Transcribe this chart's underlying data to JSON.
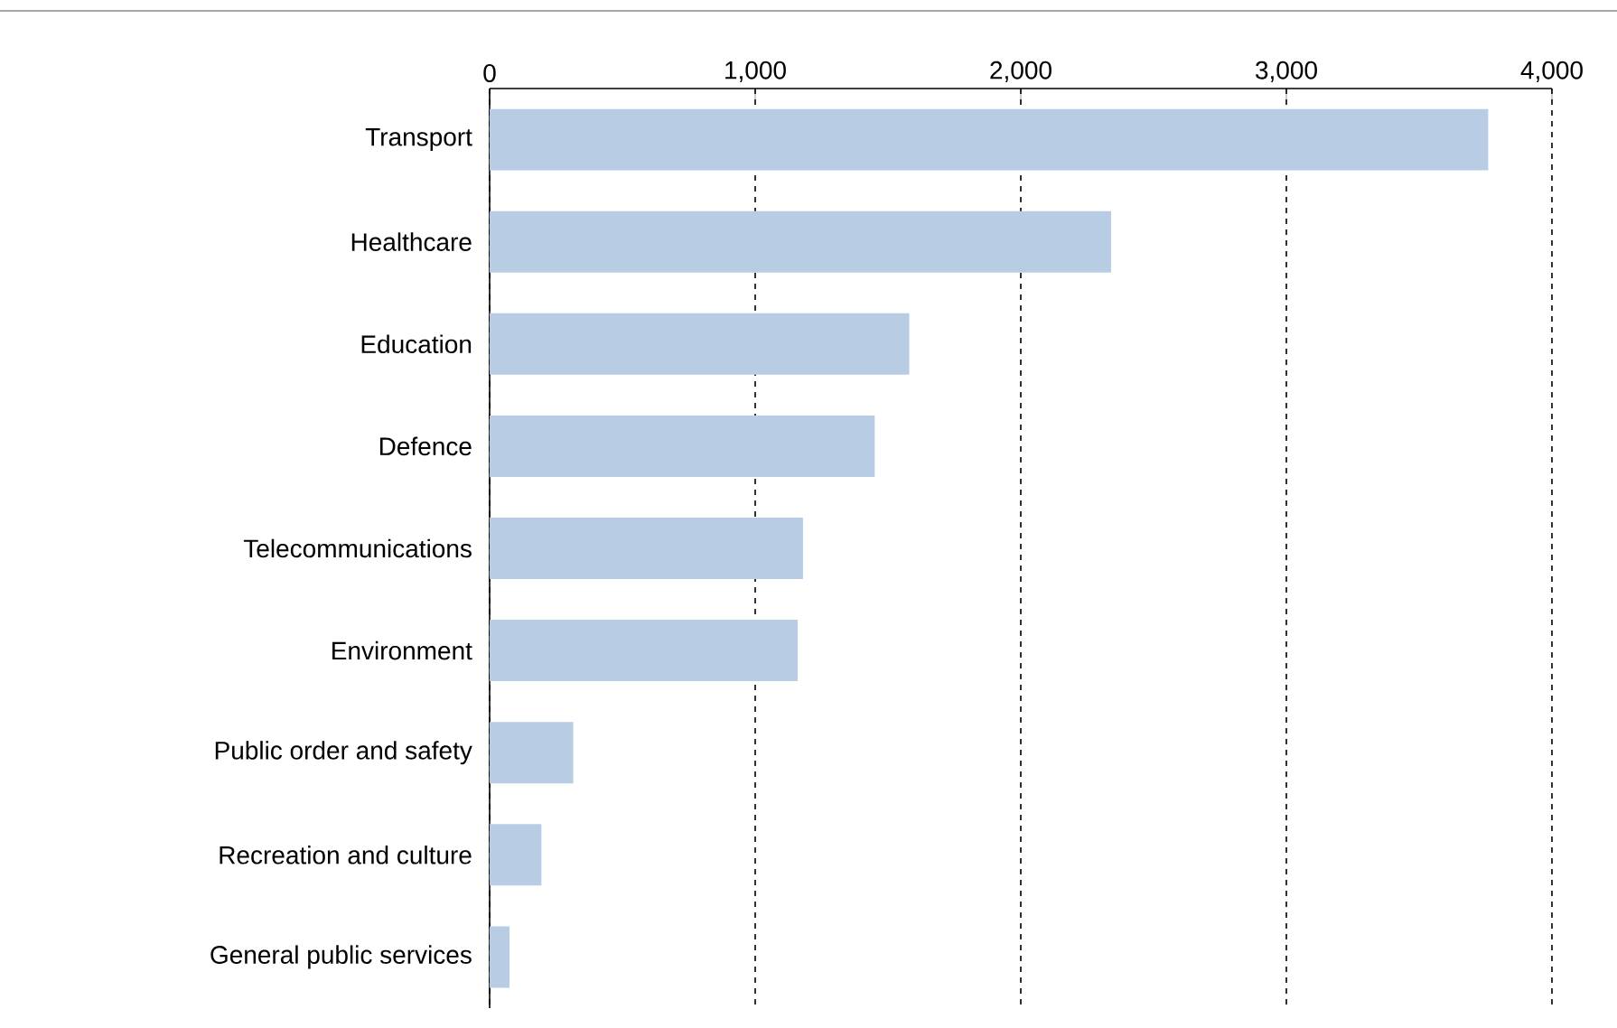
{
  "chart_data": {
    "type": "bar",
    "orientation": "horizontal",
    "categories": [
      "Transport",
      "Healthcare",
      "Education",
      "Defence",
      "Telecommunications",
      "Environment",
      "Public order and safety",
      "Recreation and culture",
      "General public services"
    ],
    "values": [
      3760,
      2340,
      1580,
      1450,
      1180,
      1160,
      315,
      195,
      75
    ],
    "color": "#b8cce4",
    "xlim": [
      0,
      4000
    ],
    "xticks": [
      0,
      {
        "value": 1000,
        "label": "1,000"
      },
      {
        "value": 2000,
        "label": "2,000"
      },
      {
        "value": 3000,
        "label": "3,000"
      },
      {
        "value": 4000,
        "label": "4,000"
      }
    ],
    "grid": "x"
  }
}
